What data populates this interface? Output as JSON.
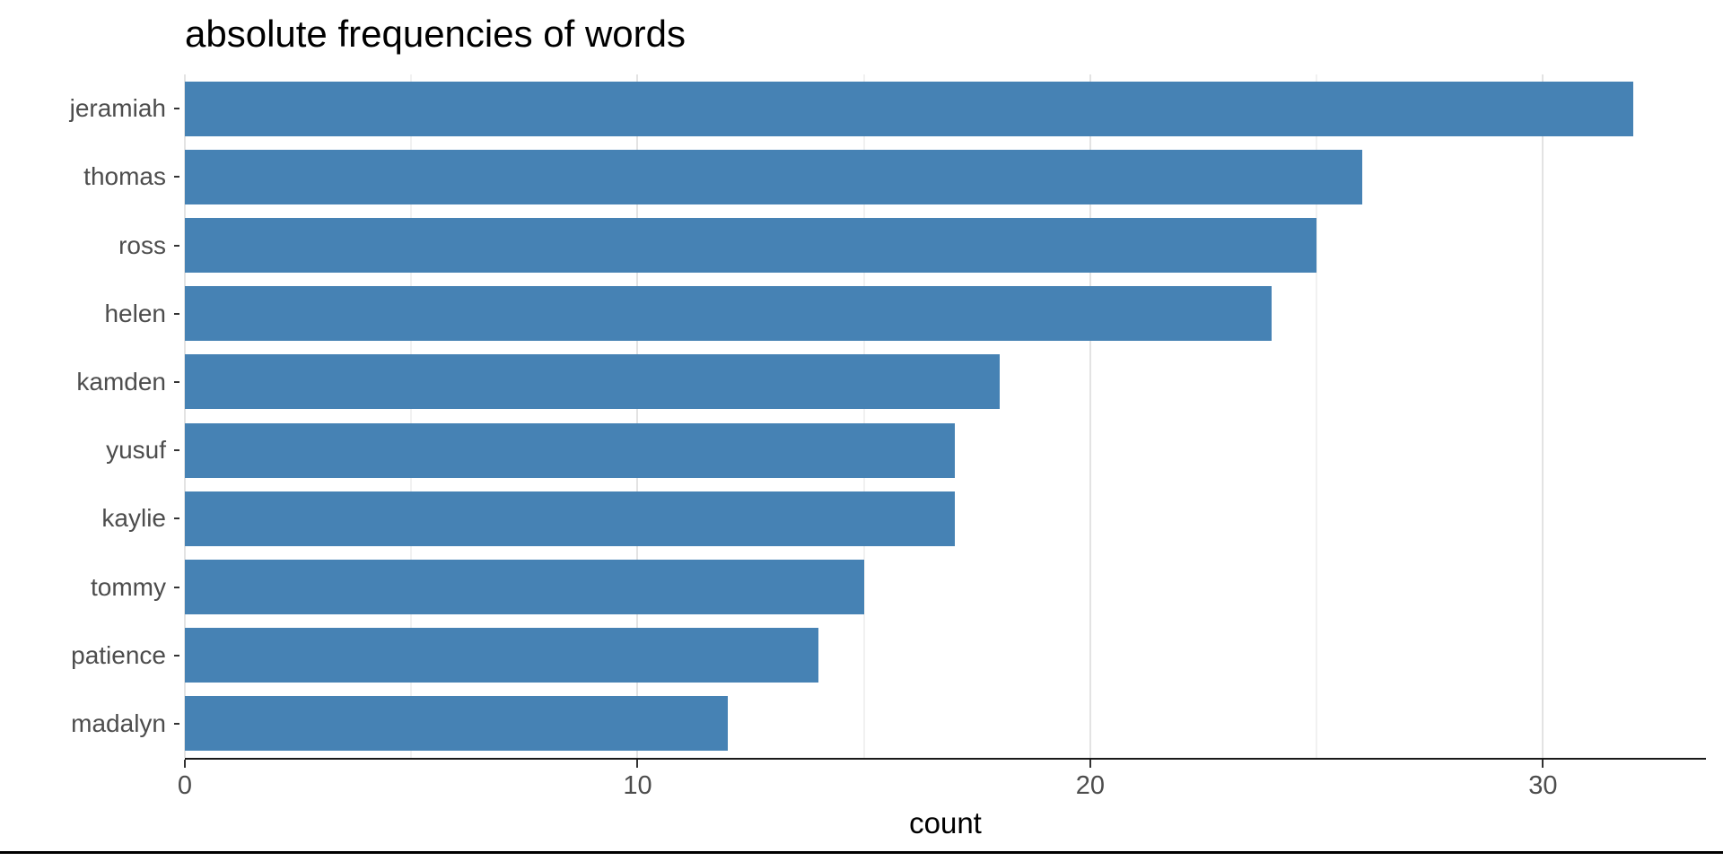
{
  "chart_data": {
    "type": "bar",
    "orientation": "horizontal",
    "title": "absolute frequencies of words",
    "xlabel": "count",
    "ylabel": "",
    "categories": [
      "jeramiah",
      "thomas",
      "ross",
      "helen",
      "kamden",
      "yusuf",
      "kaylie",
      "tommy",
      "patience",
      "madalyn"
    ],
    "values": [
      32,
      26,
      25,
      24,
      18,
      17,
      17,
      15,
      14,
      12
    ],
    "xlim": [
      0,
      33.6
    ],
    "x_major_ticks": [
      0,
      10,
      20,
      30
    ],
    "x_tick_labels": [
      "0",
      "10",
      "20",
      "30"
    ],
    "x_minor_ticks": [
      5,
      15,
      25
    ],
    "grid": "on",
    "legend": "none",
    "bar_color": "#4682B4",
    "colors": {
      "major_grid": "#E3E3E3",
      "minor_grid": "#F1F1F1",
      "axis_line": "#1A1A1A",
      "tick_mark": "#333333",
      "axis_text": "#4D4D4D",
      "title_text": "#000000",
      "background": "#FFFFFF"
    }
  }
}
